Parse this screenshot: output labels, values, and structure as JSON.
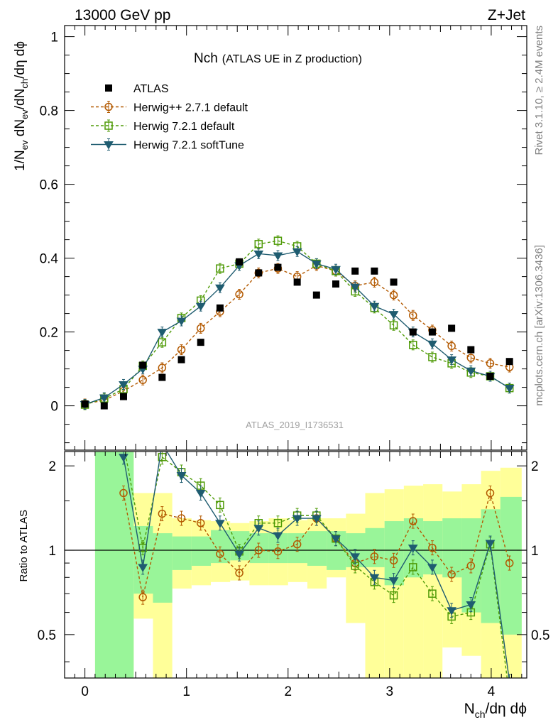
{
  "header": {
    "left": "13000 GeV pp",
    "right": "Z+Jet"
  },
  "side_labels": {
    "rivet": "Rivet 3.1.10, ≥ 2.4M events",
    "mcplots": "mcplots.cern.ch [arXiv:1306.3436]"
  },
  "analysis_id": "ATLAS_2019_I1736531",
  "title": {
    "main": "Nch",
    "sub": "(ATLAS UE in Z production)"
  },
  "axis": {
    "ylabel_main": "1/N_ev dN_ev/dN_ch/dη dϕ",
    "ylabel_main_parts": {
      "a": "1/N",
      "a_sub": "ev",
      "b": " dN",
      "b_sub": "ev",
      "c": "/dN",
      "c_sub": "ch",
      "d": "/dη dϕ"
    },
    "ylabel_ratio": "Ratio to ATLAS",
    "xlabel": "N_ch/dη dϕ",
    "xlabel_parts": {
      "a": "N",
      "a_sub": "ch",
      "b": "/dη dϕ"
    }
  },
  "chart_data": {
    "type": "line",
    "x_range": [
      -0.2,
      4.35
    ],
    "main_ylim": [
      -0.12,
      1.03
    ],
    "ratio_ylim": [
      0.35,
      2.25
    ],
    "x_ticks": [
      0,
      1,
      2,
      3,
      4
    ],
    "x_tick_labels": [
      "0",
      "1",
      "2",
      "3",
      "4"
    ],
    "main_y_ticks": [
      0,
      0.2,
      0.4,
      0.6,
      0.8,
      1
    ],
    "main_y_tick_labels": [
      "0",
      "0.2",
      "0.4",
      "0.6",
      "0.8",
      "1"
    ],
    "ratio_y_ticks": [
      0.5,
      1,
      2
    ],
    "ratio_y_tick_labels": [
      "0.5",
      "1",
      "2"
    ],
    "x": [
      0,
      0.19,
      0.38,
      0.57,
      0.76,
      0.95,
      1.14,
      1.33,
      1.52,
      1.71,
      1.9,
      2.09,
      2.28,
      2.47,
      2.66,
      2.85,
      3.04,
      3.23,
      3.42,
      3.61,
      3.8,
      3.99,
      4.18
    ],
    "data": {
      "name": "ATLAS",
      "color": "#000000",
      "values": [
        0.005,
        0.0,
        0.025,
        0.11,
        0.077,
        0.125,
        0.172,
        0.265,
        0.39,
        0.36,
        0.375,
        0.335,
        0.3,
        0.33,
        0.365,
        0.365,
        0.335,
        0.2,
        0.2,
        0.21,
        0.152,
        0.08,
        0.12
      ]
    },
    "series": [
      {
        "name": "Herwig++ 2.7.1 default",
        "color": "#b35900",
        "marker": "circle",
        "dash": "4,3",
        "values": [
          0.005,
          0.015,
          0.04,
          0.07,
          0.103,
          0.152,
          0.21,
          0.255,
          0.302,
          0.36,
          0.372,
          0.35,
          0.38,
          0.365,
          0.325,
          0.335,
          0.3,
          0.245,
          0.205,
          0.162,
          0.13,
          0.115,
          0.105
        ],
        "ratio": [
          null,
          null,
          1.6,
          0.68,
          1.35,
          1.3,
          1.25,
          0.97,
          0.83,
          1.0,
          0.99,
          1.05,
          1.3,
          1.1,
          0.9,
          0.95,
          0.92,
          1.27,
          1.02,
          0.82,
          0.88,
          1.6,
          0.9
        ]
      },
      {
        "name": "Herwig 7.2.1 default",
        "color": "#4e9a06",
        "marker": "square",
        "dash": "4,3",
        "values": [
          0.003,
          0.02,
          0.045,
          0.108,
          0.172,
          0.238,
          0.285,
          0.372,
          0.385,
          0.438,
          0.447,
          0.432,
          0.385,
          0.365,
          0.31,
          0.265,
          0.218,
          0.165,
          0.132,
          0.115,
          0.09,
          0.08,
          0.048
        ],
        "ratio": [
          null,
          null,
          2.4,
          1.02,
          2.15,
          1.9,
          1.7,
          1.45,
          0.99,
          1.25,
          1.25,
          1.33,
          1.33,
          1.1,
          0.88,
          0.77,
          0.69,
          0.87,
          0.7,
          0.58,
          0.6,
          1.05,
          0.3
        ]
      },
      {
        "name": "Herwig 7.2.1 softTune",
        "color": "#1f5c70",
        "marker": "triangle",
        "dash": "",
        "values": [
          0.004,
          0.022,
          0.058,
          0.1,
          0.2,
          0.23,
          0.27,
          0.32,
          0.38,
          0.412,
          0.407,
          0.418,
          0.385,
          0.37,
          0.322,
          0.27,
          0.248,
          0.2,
          0.168,
          0.125,
          0.095,
          0.08,
          0.048
        ],
        "ratio": [
          null,
          null,
          2.15,
          0.87,
          2.4,
          1.85,
          1.6,
          1.25,
          0.97,
          1.2,
          1.13,
          1.3,
          1.3,
          1.1,
          0.95,
          0.8,
          0.78,
          1.02,
          0.87,
          0.61,
          0.64,
          1.06,
          0.34
        ]
      }
    ],
    "band_edges": [
      0.1,
      0.48,
      0.67,
      0.86,
      1.05,
      1.24,
      1.43,
      1.62,
      1.81,
      2.0,
      2.19,
      2.38,
      2.57,
      2.76,
      2.95,
      3.14,
      3.33,
      3.52,
      3.71,
      3.9,
      4.09,
      4.3
    ],
    "band_stat": [
      [
        0.3,
        2.3
      ],
      [
        0.7,
        1.22
      ],
      [
        0.65,
        1.15
      ],
      [
        0.85,
        1.12
      ],
      [
        0.88,
        1.12
      ],
      [
        0.9,
        1.18
      ],
      [
        0.92,
        1.17
      ],
      [
        0.9,
        1.15
      ],
      [
        0.9,
        1.15
      ],
      [
        0.9,
        1.15
      ],
      [
        0.88,
        1.17
      ],
      [
        0.85,
        1.17
      ],
      [
        0.87,
        1.15
      ],
      [
        0.87,
        1.2
      ],
      [
        0.75,
        1.27
      ],
      [
        0.8,
        1.3
      ],
      [
        0.82,
        1.27
      ],
      [
        0.8,
        1.3
      ],
      [
        0.6,
        1.3
      ],
      [
        0.55,
        1.4
      ],
      [
        0.5,
        1.55
      ]
    ],
    "band_total": [
      [
        0.3,
        2.3
      ],
      [
        0.57,
        1.6
      ],
      [
        0.35,
        1.6
      ],
      [
        0.73,
        1.3
      ],
      [
        0.75,
        1.28
      ],
      [
        0.77,
        1.27
      ],
      [
        0.78,
        1.25
      ],
      [
        0.75,
        1.27
      ],
      [
        0.75,
        1.3
      ],
      [
        0.77,
        1.28
      ],
      [
        0.73,
        1.3
      ],
      [
        0.8,
        1.3
      ],
      [
        0.55,
        1.35
      ],
      [
        0.35,
        1.6
      ],
      [
        0.35,
        1.65
      ],
      [
        0.35,
        1.7
      ],
      [
        0.35,
        1.72
      ],
      [
        0.45,
        1.62
      ],
      [
        0.42,
        1.72
      ],
      [
        0.35,
        1.92
      ],
      [
        0.35,
        1.97
      ]
    ],
    "band_colors": {
      "stat": "#99f599",
      "total": "#ffff99"
    }
  }
}
